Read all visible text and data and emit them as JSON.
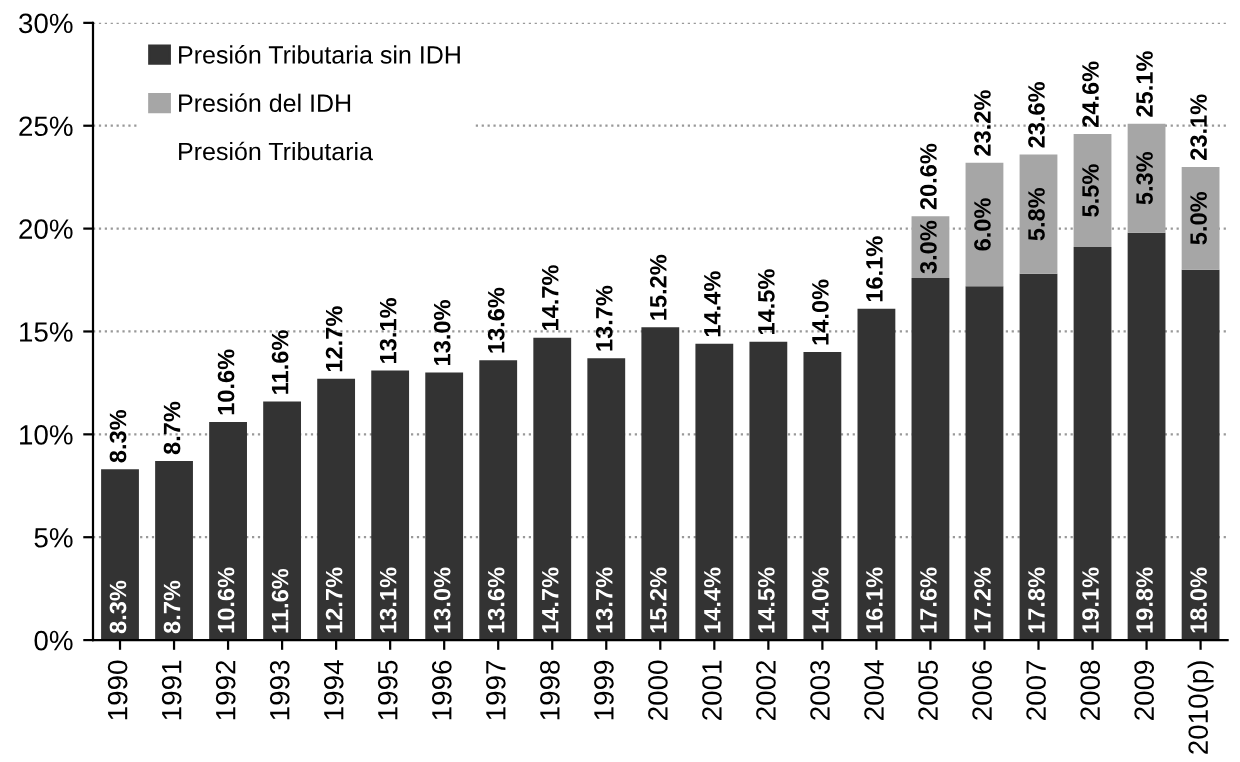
{
  "chart_data": {
    "type": "bar",
    "stacked": true,
    "categories": [
      "1990",
      "1991",
      "1992",
      "1993",
      "1994",
      "1995",
      "1996",
      "1997",
      "1998",
      "1999",
      "2000",
      "2001",
      "2002",
      "2003",
      "2004",
      "2005",
      "2006",
      "2007",
      "2008",
      "2009",
      "2010(p)"
    ],
    "series": [
      {
        "name": "Presión Tributaria sin IDH",
        "color": "#333333",
        "values": [
          8.3,
          8.7,
          10.6,
          11.6,
          12.7,
          13.1,
          13.0,
          13.6,
          14.7,
          13.7,
          15.2,
          14.4,
          14.5,
          14.0,
          16.1,
          17.6,
          17.2,
          17.8,
          19.1,
          19.8,
          18.0
        ],
        "value_labels": [
          "8.3%",
          "8.7%",
          "10.6%",
          "11.6%",
          "12.7%",
          "13.1%",
          "13.0%",
          "13.6%",
          "14.7%",
          "13.7%",
          "15.2%",
          "14.4%",
          "14.5%",
          "14.0%",
          "16.1%",
          "17.6%",
          "17.2%",
          "17.8%",
          "19.1%",
          "19.8%",
          "18.0%"
        ]
      },
      {
        "name": "Presión del IDH",
        "color": "#a6a6a6",
        "values": [
          null,
          null,
          null,
          null,
          null,
          null,
          null,
          null,
          null,
          null,
          null,
          null,
          null,
          null,
          null,
          3.0,
          6.0,
          5.8,
          5.5,
          5.3,
          5.0
        ],
        "value_labels": [
          null,
          null,
          null,
          null,
          null,
          null,
          null,
          null,
          null,
          null,
          null,
          null,
          null,
          null,
          null,
          "3.0%",
          "6.0%",
          "5.8%",
          "5.5%",
          "5.3%",
          "5.0%"
        ]
      }
    ],
    "totals": [
      "8.3%",
      "8.7%",
      "10.6%",
      "11.6%",
      "12.7%",
      "13.1%",
      "13.0%",
      "13.6%",
      "14.7%",
      "13.7%",
      "15.2%",
      "14.4%",
      "14.5%",
      "14.0%",
      "16.1%",
      "20.6%",
      "23.2%",
      "23.6%",
      "24.6%",
      "25.1%",
      "23.1%"
    ],
    "annotations": [
      "Presión Tributaria"
    ],
    "ylim": [
      0,
      30
    ],
    "yticks": [
      {
        "value": 0,
        "label": "0%"
      },
      {
        "value": 5,
        "label": "5%"
      },
      {
        "value": 10,
        "label": "10%"
      },
      {
        "value": 15,
        "label": "15%"
      },
      {
        "value": 20,
        "label": "20%"
      },
      {
        "value": 25,
        "label": "25%"
      },
      {
        "value": 30,
        "label": "30%"
      }
    ],
    "grid": "y",
    "legend": "top left"
  }
}
